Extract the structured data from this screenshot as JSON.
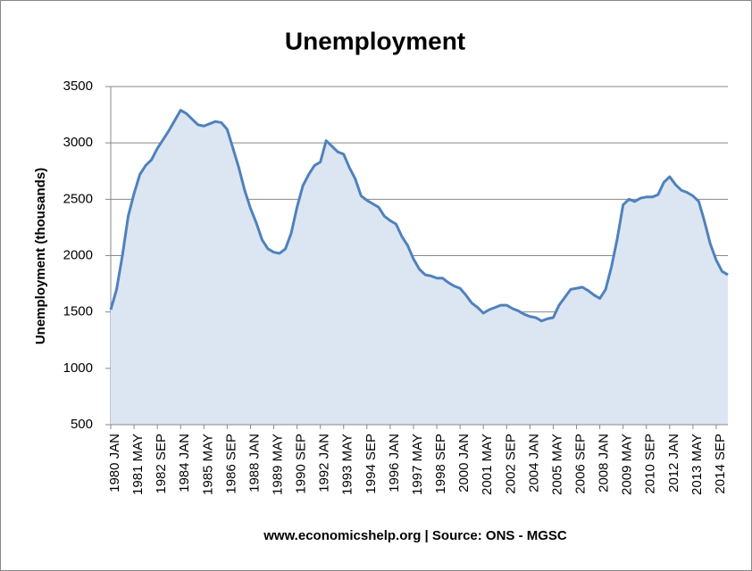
{
  "chart_data": {
    "type": "area",
    "title": "Unemployment",
    "y_label": "Unemployment (thousands)",
    "source": "www.economicshelp.org | Source: ONS - MGSC",
    "categories": [
      "1980 JAN",
      null,
      null,
      null,
      "1981 MAY",
      null,
      null,
      null,
      "1982 SEP",
      null,
      null,
      null,
      "1984 JAN",
      null,
      null,
      null,
      "1985 MAY",
      null,
      null,
      null,
      "1986 SEP",
      null,
      null,
      null,
      "1988 JAN",
      null,
      null,
      null,
      "1989 MAY",
      null,
      null,
      null,
      "1990 SEP",
      null,
      null,
      null,
      "1992 JAN",
      null,
      null,
      null,
      "1993 MAY",
      null,
      null,
      null,
      "1994 SEP",
      null,
      null,
      null,
      "1996 JAN",
      null,
      null,
      null,
      "1997 MAY",
      null,
      null,
      null,
      "1998 SEP",
      null,
      null,
      null,
      "2000 JAN",
      null,
      null,
      null,
      "2001 MAY",
      null,
      null,
      null,
      "2002 SEP",
      null,
      null,
      null,
      "2004 JAN",
      null,
      null,
      null,
      "2005 MAY",
      null,
      null,
      null,
      "2006 SEP",
      null,
      null,
      null,
      "2008 JAN",
      null,
      null,
      null,
      "2009 MAY",
      null,
      null,
      null,
      "2010 SEP",
      null,
      null,
      null,
      "2012 JAN",
      null,
      null,
      null,
      "2013 MAY",
      null,
      null,
      null,
      "2014 SEP",
      null,
      null
    ],
    "values": [
      1520,
      1700,
      2000,
      2350,
      2550,
      2720,
      2800,
      2850,
      2950,
      3030,
      3110,
      3200,
      3290,
      3260,
      3210,
      3160,
      3150,
      3170,
      3190,
      3180,
      3120,
      2950,
      2780,
      2580,
      2420,
      2290,
      2140,
      2060,
      2030,
      2020,
      2060,
      2200,
      2430,
      2620,
      2720,
      2800,
      2830,
      3020,
      2970,
      2920,
      2900,
      2780,
      2680,
      2530,
      2490,
      2460,
      2430,
      2350,
      2310,
      2280,
      2170,
      2090,
      1970,
      1880,
      1830,
      1820,
      1800,
      1800,
      1760,
      1730,
      1710,
      1650,
      1580,
      1540,
      1490,
      1520,
      1540,
      1560,
      1560,
      1530,
      1510,
      1480,
      1460,
      1450,
      1420,
      1440,
      1450,
      1560,
      1630,
      1700,
      1710,
      1720,
      1690,
      1650,
      1620,
      1700,
      1900,
      2150,
      2450,
      2500,
      2480,
      2510,
      2520,
      2520,
      2540,
      2650,
      2700,
      2630,
      2580,
      2560,
      2530,
      2480,
      2300,
      2100,
      1960,
      1860,
      1830
    ],
    "line_color": "#4f81bd",
    "fill_color": "#dce6f2",
    "ylim": [
      500,
      3500
    ],
    "yticks": [
      500,
      1000,
      1500,
      2000,
      2500,
      3000,
      3500
    ],
    "grid": true
  }
}
